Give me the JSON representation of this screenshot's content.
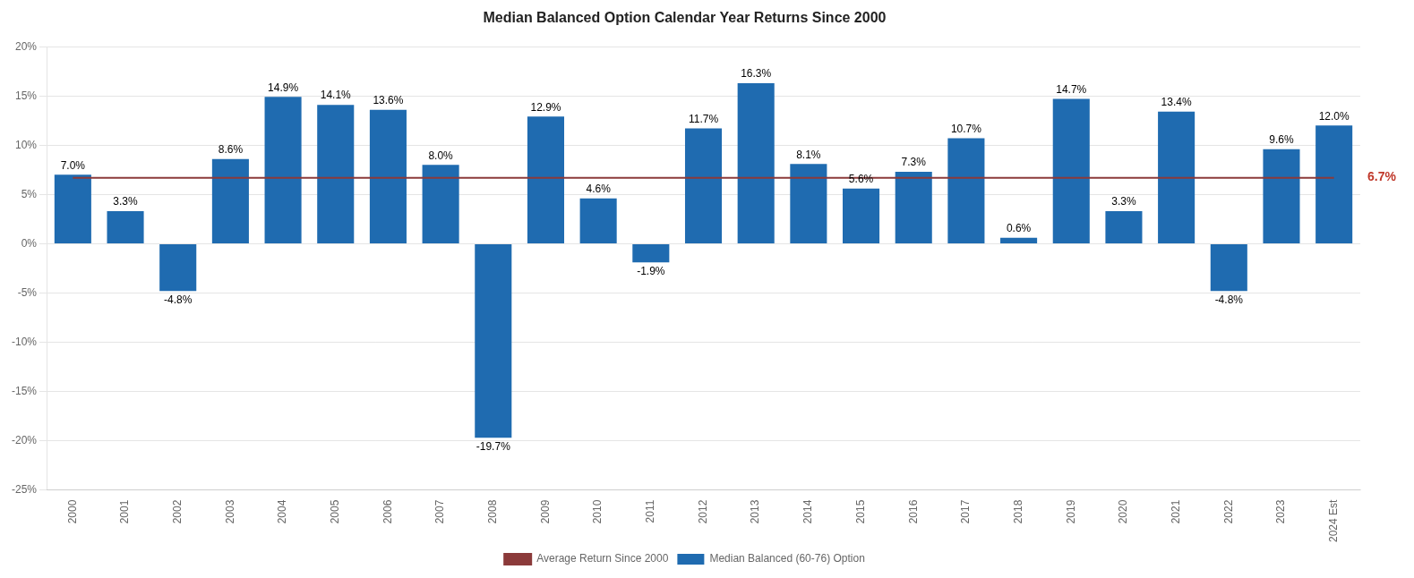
{
  "chart_data": {
    "type": "bar",
    "title": "Median Balanced Option Calendar Year Returns Since 2000",
    "categories": [
      "2000",
      "2001",
      "2002",
      "2003",
      "2004",
      "2005",
      "2006",
      "2007",
      "2008",
      "2009",
      "2010",
      "2011",
      "2012",
      "2013",
      "2014",
      "2015",
      "2016",
      "2017",
      "2018",
      "2019",
      "2020",
      "2021",
      "2022",
      "2023",
      "2024 Est"
    ],
    "series": [
      {
        "name": "Median Balanced (60-76) Option",
        "type": "bar",
        "color": "#1F6BB0",
        "values": [
          7.0,
          3.3,
          -4.8,
          8.6,
          14.9,
          14.1,
          13.6,
          8.0,
          -19.7,
          12.9,
          4.6,
          -1.9,
          11.7,
          16.3,
          8.1,
          5.6,
          7.3,
          10.7,
          0.6,
          14.7,
          3.3,
          13.4,
          -4.8,
          9.6,
          12.0
        ],
        "value_labels": [
          "7.0%",
          "3.3%",
          "-4.8%",
          "8.6%",
          "14.9%",
          "14.1%",
          "13.6%",
          "8.0%",
          "-19.7%",
          "12.9%",
          "4.6%",
          "-1.9%",
          "11.7%",
          "16.3%",
          "8.1%",
          "5.6%",
          "7.3%",
          "10.7%",
          "0.6%",
          "14.7%",
          "3.3%",
          "13.4%",
          "-4.8%",
          "9.6%",
          "12.0%"
        ]
      },
      {
        "name": "Average Return Since 2000",
        "type": "line",
        "color": "#8B3A3A",
        "values": [
          6.7,
          6.7,
          6.7,
          6.7,
          6.7,
          6.7,
          6.7,
          6.7,
          6.7,
          6.7,
          6.7,
          6.7,
          6.7,
          6.7,
          6.7,
          6.7,
          6.7,
          6.7,
          6.7,
          6.7,
          6.7,
          6.7,
          6.7,
          6.7,
          6.7
        ]
      }
    ],
    "annotations": [
      {
        "text": "6.7%",
        "y": 6.7,
        "color": "#C0392B"
      }
    ],
    "ylim": [
      -25,
      20
    ],
    "yticks": [
      {
        "value": -25,
        "label": "-25%"
      },
      {
        "value": -20,
        "label": "-20%"
      },
      {
        "value": -15,
        "label": "-15%"
      },
      {
        "value": -10,
        "label": "-10%"
      },
      {
        "value": -5,
        "label": "-5%"
      },
      {
        "value": 0,
        "label": "0%"
      },
      {
        "value": 5,
        "label": "5%"
      },
      {
        "value": 10,
        "label": "10%"
      },
      {
        "value": 15,
        "label": "15%"
      },
      {
        "value": 20,
        "label": "20%"
      }
    ],
    "grid": true,
    "data_labels": true,
    "legend": "bottom"
  }
}
